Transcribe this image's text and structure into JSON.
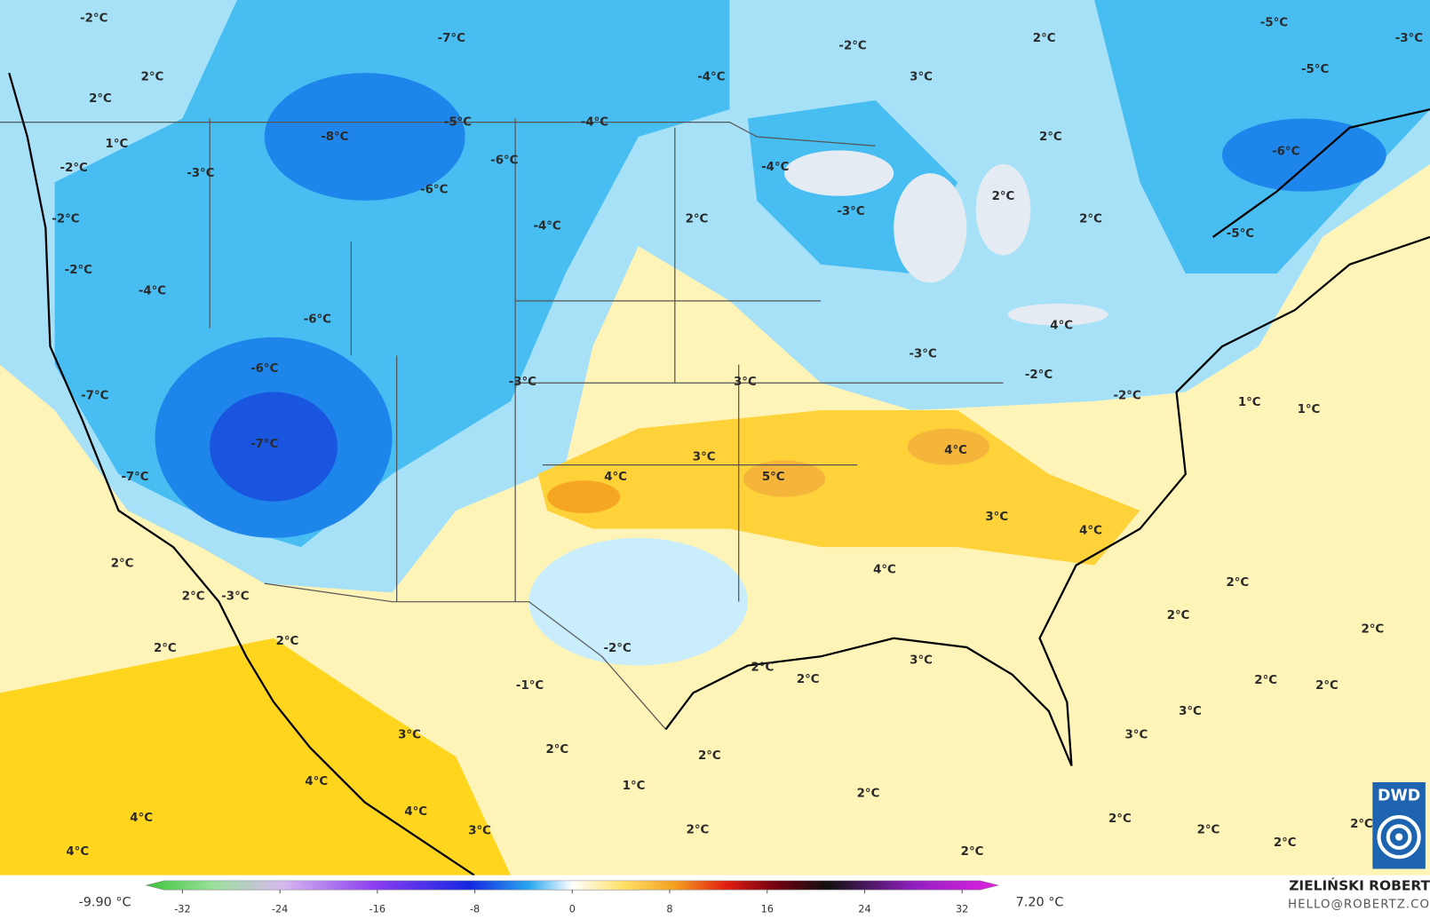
{
  "map": {
    "labels": [
      "-2°C",
      "-7°C",
      "-2°C",
      "2°C",
      "-5°C",
      "-3°C",
      "-5°C",
      "-4°C",
      "3°C",
      "2°C",
      "2°C",
      "-5°C",
      "-4°C",
      "-8°C",
      "2°C",
      "1°C",
      "-6°C",
      "-6°C",
      "-4°C",
      "-2°C",
      "-3°C",
      "-6°C",
      "2°C",
      "-3°C",
      "2°C",
      "2°C",
      "-2°C",
      "-4°C",
      "-5°C",
      "-2°C",
      "-4°C",
      "-6°C",
      "4°C",
      "-3°C",
      "-6°C",
      "-2°C",
      "-3°C",
      "3°C",
      "-7°C",
      "-2°C",
      "1°C",
      "1°C",
      "-7°C",
      "4°C",
      "3°C",
      "-7°C",
      "4°C",
      "5°C",
      "3°C",
      "4°C",
      "2°C",
      "4°C",
      "2°C",
      "2°C",
      "-3°C",
      "2°C",
      "2°C",
      "2°C",
      "2°C",
      "-2°C",
      "3°C",
      "2°C",
      "2°C",
      "2°C",
      "2°C",
      "-1°C",
      "3°C",
      "3°C",
      "3°C",
      "2°C",
      "2°C",
      "4°C",
      "1°C",
      "2°C",
      "4°C",
      "4°C",
      "2°C",
      "3°C",
      "2°C",
      "2°C",
      "2°C",
      "4°C",
      "2°C",
      "2°C"
    ],
    "colorbar": {
      "min_label": "-9.90 °C",
      "max_label": "7.20 °C",
      "lim": [
        -35,
        35
      ],
      "ticks": [
        -32,
        -24,
        -16,
        -8,
        0,
        8,
        16,
        24,
        32
      ]
    },
    "credit": {
      "author": "ZIELIŃSKI ROBERT",
      "email": "HELLO@ROBERTZ.CO"
    },
    "logo": "DWD"
  }
}
